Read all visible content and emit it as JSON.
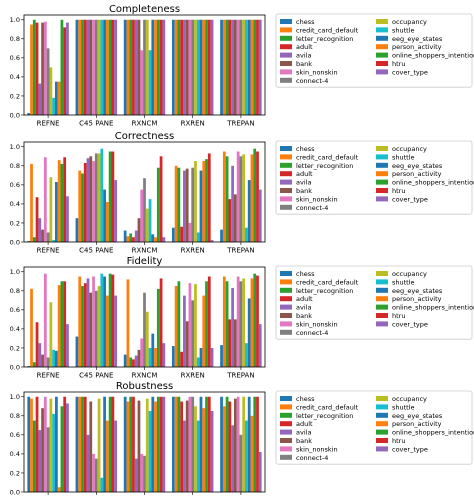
{
  "chart_data": {
    "type": "bar",
    "categories": [
      "REFNE",
      "C45 PANE",
      "RXNCM",
      "RXREN",
      "TREPAN"
    ],
    "series_names": [
      "chess",
      "credit_card_default",
      "letter_recognition",
      "adult",
      "avila",
      "bank",
      "skin_nonskin",
      "connect-4",
      "occupancy",
      "shuttle",
      "eeg_eye_states",
      "person_activity",
      "online_shoppers_intention",
      "htru",
      "cover_type"
    ],
    "colors": [
      "#1f77b4",
      "#ff7f0e",
      "#2ca02c",
      "#d62728",
      "#9467bd",
      "#8c564b",
      "#e377c2",
      "#7f7f7f",
      "#bcbd22",
      "#17becf",
      "#1f77b4",
      "#ff7f0e",
      "#2ca02c",
      "#d62728",
      "#9467bd"
    ],
    "yticks": [
      "0.0",
      "0.2",
      "0.4",
      "0.6",
      "0.8",
      "1.0"
    ],
    "ylim": [
      0,
      1.05
    ],
    "legend": "right",
    "panels": [
      {
        "title": "Completeness",
        "values": [
          [
            0.02,
            0.95,
            1.0,
            0.97,
            0.33,
            0.97,
            0.98,
            0.7,
            0.5,
            0.18,
            0.35,
            0.35,
            1.0,
            0.92,
            0.97
          ],
          [
            1.0,
            1.0,
            1.0,
            1.0,
            1.0,
            1.0,
            1.0,
            1.0,
            1.0,
            1.0,
            1.0,
            1.0,
            1.0,
            1.0,
            1.0
          ],
          [
            1.0,
            1.0,
            1.0,
            1.0,
            1.0,
            1.0,
            0.68,
            1.0,
            1.0,
            0.68,
            1.0,
            1.0,
            1.0,
            1.0,
            1.0
          ],
          [
            1.0,
            1.0,
            1.0,
            1.0,
            1.0,
            1.0,
            1.0,
            1.0,
            1.0,
            1.0,
            1.0,
            1.0,
            1.0,
            1.0,
            1.0
          ],
          [
            1.0,
            1.0,
            1.0,
            1.0,
            1.0,
            1.0,
            1.0,
            1.0,
            1.0,
            1.0,
            1.0,
            1.0,
            1.0,
            1.0,
            1.0
          ]
        ]
      },
      {
        "title": "Correctness",
        "values": [
          [
            0.01,
            0.82,
            0.05,
            0.47,
            0.25,
            0.13,
            0.89,
            0.1,
            0.68,
            0.02,
            0.63,
            0.86,
            0.82,
            0.89,
            0.48
          ],
          [
            0.25,
            0.75,
            0.72,
            0.83,
            0.88,
            0.9,
            0.85,
            0.93,
            0.93,
            0.98,
            0.55,
            0.42,
            0.95,
            0.95,
            0.65
          ],
          [
            0.12,
            0.06,
            0.09,
            0.05,
            0.12,
            0.25,
            0.55,
            0.67,
            0.35,
            0.45,
            0.08,
            0.05,
            0.78,
            0.9,
            0.05
          ],
          [
            0.15,
            0.8,
            0.78,
            0.16,
            0.75,
            0.77,
            0.2,
            0.78,
            0.85,
            0.1,
            0.75,
            0.85,
            0.87,
            0.93,
            0.02
          ],
          [
            0.13,
            0.95,
            0.9,
            0.45,
            0.8,
            0.5,
            0.95,
            0.9,
            0.92,
            0.15,
            0.65,
            0.92,
            0.98,
            0.95,
            0.55
          ]
        ]
      },
      {
        "title": "Fidelity",
        "values": [
          [
            0.01,
            0.82,
            0.05,
            0.47,
            0.25,
            0.13,
            0.98,
            0.1,
            0.68,
            0.18,
            0.17,
            0.86,
            0.9,
            0.9,
            0.45
          ],
          [
            0.32,
            0.95,
            0.85,
            0.88,
            0.93,
            0.78,
            0.95,
            0.8,
            0.85,
            0.98,
            0.95,
            0.75,
            0.98,
            0.97,
            0.75
          ],
          [
            0.13,
            0.92,
            0.1,
            0.08,
            0.12,
            0.18,
            0.3,
            0.78,
            0.58,
            0.2,
            0.35,
            0.2,
            0.82,
            0.93,
            0.25
          ],
          [
            0.22,
            0.85,
            0.9,
            0.16,
            0.75,
            0.48,
            0.88,
            0.7,
            0.87,
            0.1,
            0.2,
            0.75,
            0.9,
            0.95,
            0.2
          ],
          [
            0.23,
            0.95,
            0.9,
            0.5,
            0.83,
            0.5,
            0.95,
            0.9,
            0.93,
            0.25,
            0.72,
            0.93,
            0.98,
            0.96,
            0.45
          ]
        ]
      },
      {
        "title": "Robustness",
        "values": [
          [
            1.0,
            0.98,
            0.75,
            1.0,
            0.65,
            0.88,
            1.0,
            0.68,
            0.98,
            0.82,
            1.0,
            0.05,
            0.9,
            1.0,
            0.93
          ],
          [
            1.0,
            1.0,
            1.0,
            1.0,
            0.6,
            0.95,
            0.4,
            0.35,
            0.98,
            0.15,
            1.0,
            0.75,
            1.0,
            1.0,
            0.75
          ],
          [
            1.0,
            0.95,
            1.0,
            1.0,
            0.35,
            0.96,
            0.4,
            0.38,
            0.98,
            0.85,
            1.0,
            0.95,
            1.0,
            1.0,
            1.0
          ],
          [
            1.0,
            1.0,
            1.0,
            0.95,
            0.75,
            0.96,
            1.0,
            1.0,
            0.9,
            0.75,
            1.0,
            0.88,
            1.0,
            1.0,
            0.85
          ],
          [
            1.0,
            0.9,
            1.0,
            0.95,
            0.7,
            0.98,
            1.0,
            0.6,
            1.0,
            0.75,
            1.0,
            0.8,
            1.0,
            1.0,
            0.42
          ]
        ]
      }
    ]
  }
}
